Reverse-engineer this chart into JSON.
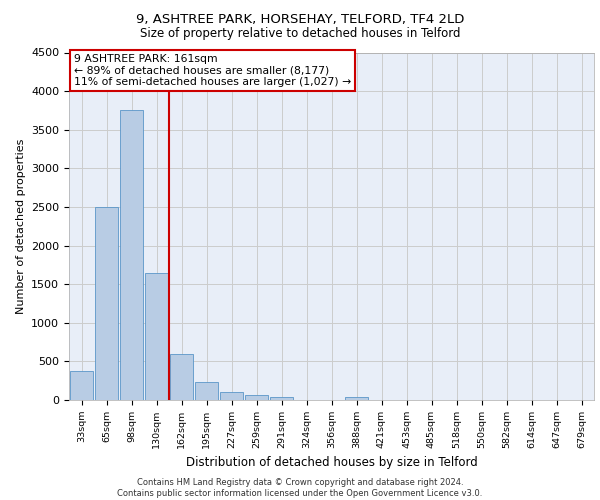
{
  "title1": "9, ASHTREE PARK, HORSEHAY, TELFORD, TF4 2LD",
  "title2": "Size of property relative to detached houses in Telford",
  "xlabel": "Distribution of detached houses by size in Telford",
  "ylabel": "Number of detached properties",
  "categories": [
    "33sqm",
    "65sqm",
    "98sqm",
    "130sqm",
    "162sqm",
    "195sqm",
    "227sqm",
    "259sqm",
    "291sqm",
    "324sqm",
    "356sqm",
    "388sqm",
    "421sqm",
    "453sqm",
    "485sqm",
    "518sqm",
    "550sqm",
    "582sqm",
    "614sqm",
    "647sqm",
    "679sqm"
  ],
  "values": [
    370,
    2500,
    3750,
    1650,
    590,
    230,
    110,
    60,
    40,
    0,
    0,
    40,
    0,
    0,
    0,
    0,
    0,
    0,
    0,
    0,
    0
  ],
  "bar_color": "#b8cce4",
  "bar_edge_color": "#5a96c8",
  "vline_color": "#cc0000",
  "annotation_text": "9 ASHTREE PARK: 161sqm\n← 89% of detached houses are smaller (8,177)\n11% of semi-detached houses are larger (1,027) →",
  "annotation_box_color": "#ffffff",
  "annotation_box_edge_color": "#cc0000",
  "ylim": [
    0,
    4500
  ],
  "yticks": [
    0,
    500,
    1000,
    1500,
    2000,
    2500,
    3000,
    3500,
    4000,
    4500
  ],
  "grid_color": "#cccccc",
  "bg_color": "#e8eef8",
  "footer": "Contains HM Land Registry data © Crown copyright and database right 2024.\nContains public sector information licensed under the Open Government Licence v3.0."
}
